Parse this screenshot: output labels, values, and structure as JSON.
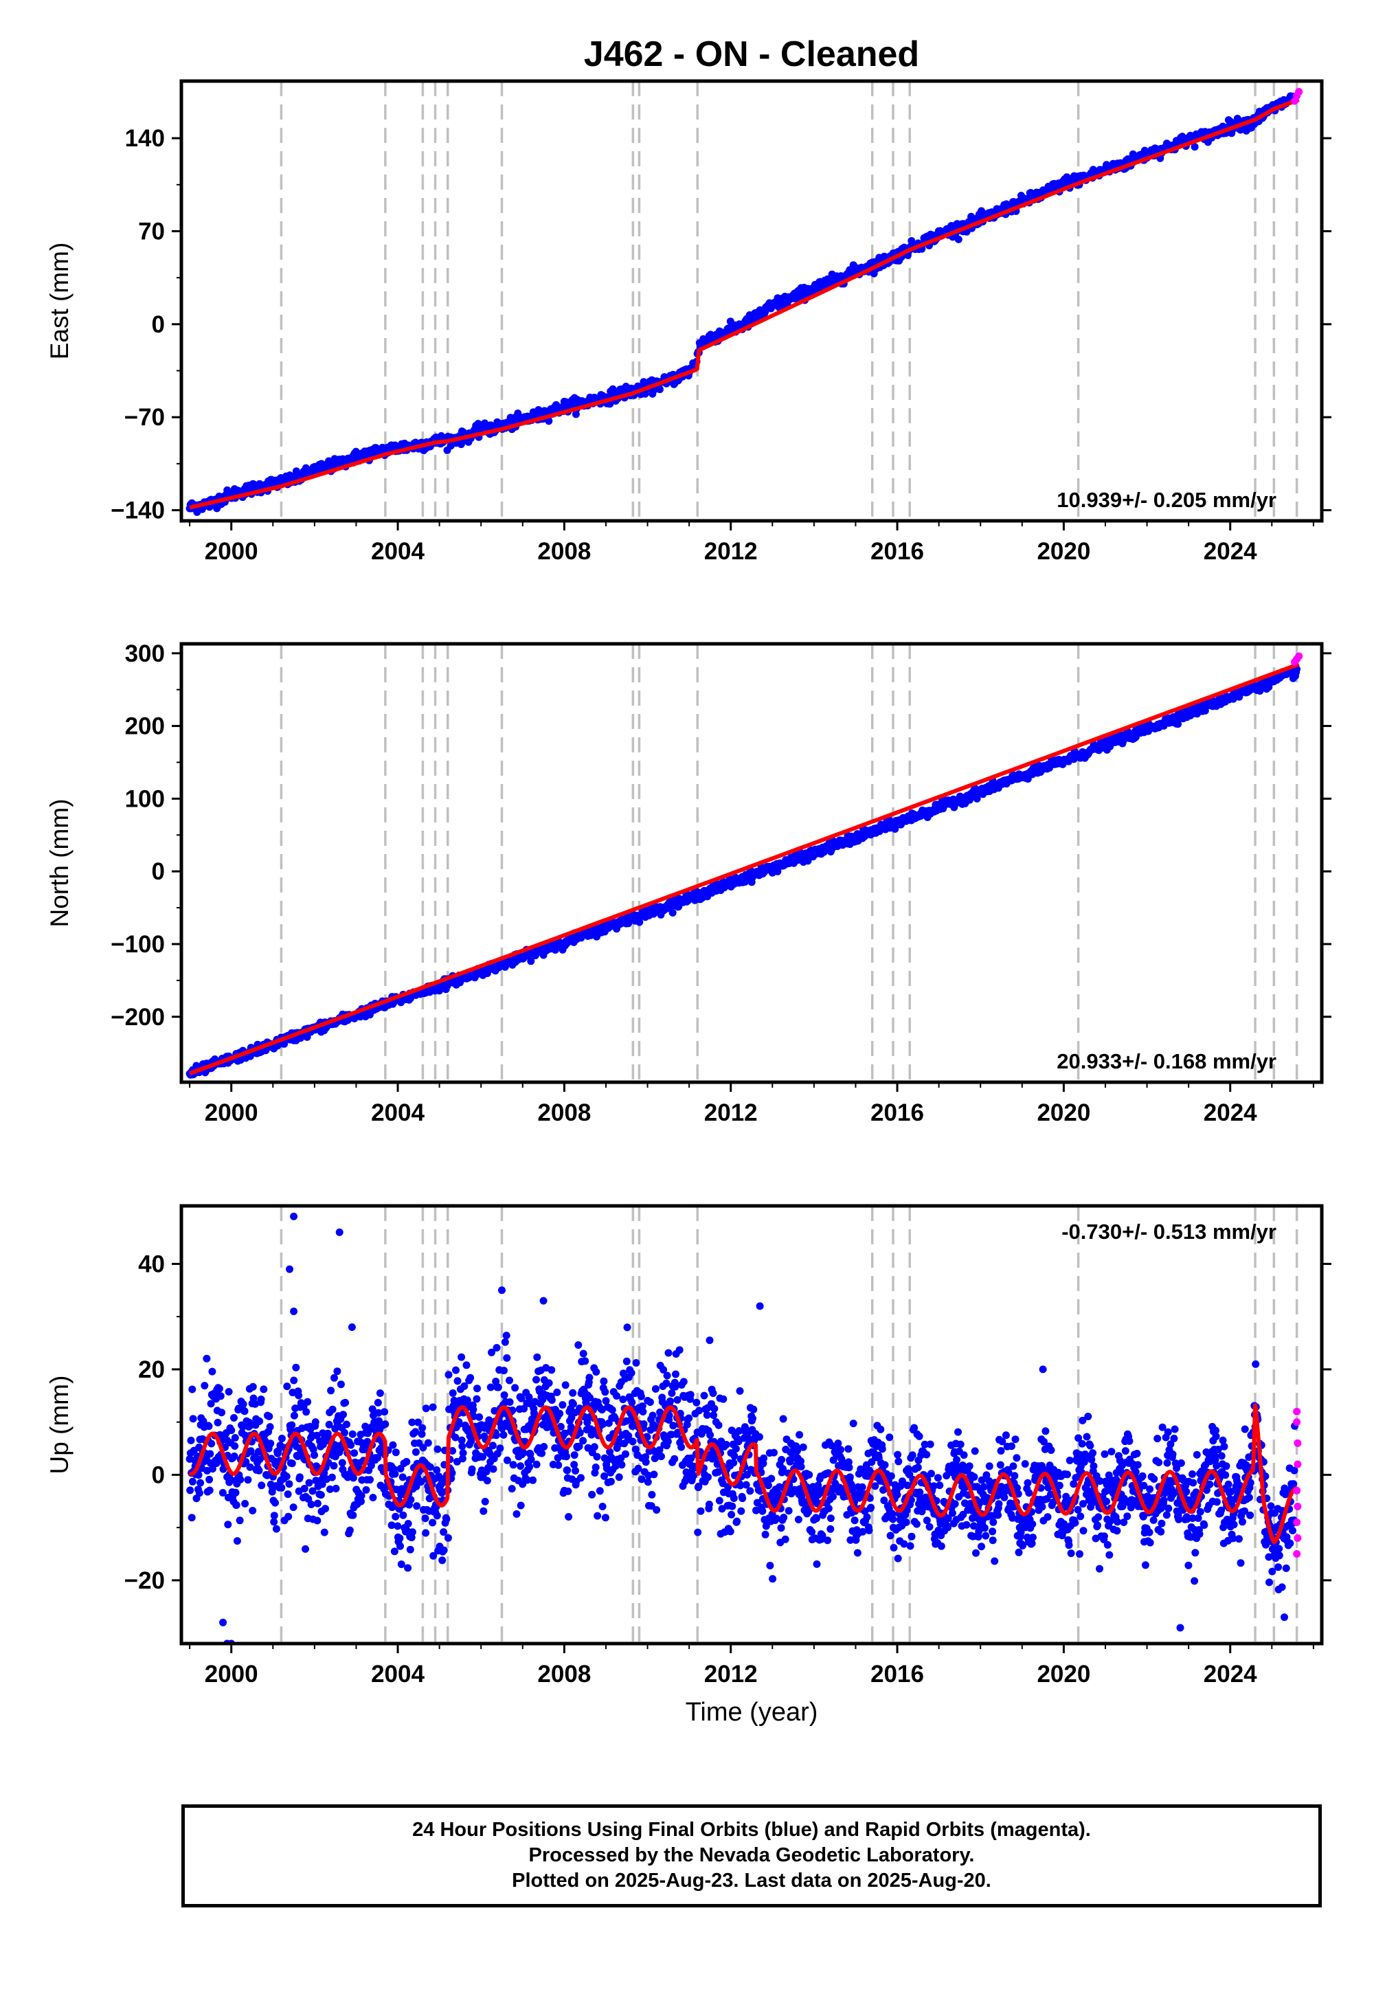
{
  "title": "J462  - ON - Cleaned",
  "colors": {
    "final": "#0000ff",
    "rapid": "#ff00ff",
    "model": "#ff0000",
    "steps": "#c0c0c0"
  },
  "step_years": [
    2001.2,
    2003.7,
    2004.6,
    2004.9,
    2005.2,
    2006.5,
    2009.65,
    2009.8,
    2011.2,
    2015.4,
    2015.9,
    2016.3,
    2020.35,
    2024.6,
    2025.05,
    2025.6
  ],
  "chart_data": [
    {
      "type": "scatter",
      "ylabel": "East (mm)",
      "xlabel": "",
      "xlim": [
        1998.8,
        2026.2
      ],
      "ylim": [
        -148,
        183
      ],
      "yticks": [
        -140,
        -70,
        0,
        70,
        140
      ],
      "xticks": [
        2000,
        2004,
        2008,
        2012,
        2016,
        2020,
        2024
      ],
      "rate_label": "10.939+/- 0.205 mm/yr",
      "rate_position": "bottom-right",
      "series": [
        {
          "role": "final",
          "x": [
            1999.0,
            1999.5,
            2000.0,
            2000.5,
            2001.0,
            2001.5,
            2002.0,
            2002.5,
            2003.0,
            2003.5,
            2004.0,
            2004.5,
            2005.0,
            2005.5,
            2006.0,
            2006.5,
            2007.0,
            2007.5,
            2008.0,
            2008.5,
            2009.0,
            2009.5,
            2010.0,
            2010.5,
            2011.0,
            2011.15,
            2011.25,
            2011.5,
            2012.0,
            2012.5,
            2013.0,
            2013.5,
            2014.0,
            2014.5,
            2015.0,
            2015.5,
            2016.0,
            2016.5,
            2017.0,
            2017.5,
            2018.0,
            2018.5,
            2019.0,
            2019.5,
            2020.0,
            2020.5,
            2021.0,
            2021.5,
            2022.0,
            2022.5,
            2023.0,
            2023.5,
            2024.0,
            2024.5,
            2025.0,
            2025.5
          ],
          "y": [
            -138,
            -135,
            -128,
            -124,
            -120,
            -117,
            -110,
            -106,
            -100,
            -96,
            -93,
            -91,
            -88,
            -86,
            -80,
            -77,
            -72,
            -68,
            -62,
            -59,
            -55,
            -51,
            -48,
            -43,
            -35,
            -30,
            -16,
            -10,
            -5,
            3,
            14,
            20,
            27,
            33,
            40,
            45,
            52,
            60,
            67,
            73,
            78,
            85,
            92,
            98,
            106,
            110,
            116,
            121,
            128,
            133,
            139,
            142,
            149,
            152,
            162,
            170
          ]
        },
        {
          "role": "rapid",
          "x": [
            2025.55,
            2025.6,
            2025.65
          ],
          "y": [
            168,
            172,
            175
          ]
        },
        {
          "role": "model",
          "x": [
            1999.0,
            2001.2,
            2003.7,
            2004.9,
            2005.2,
            2006.5,
            2009.65,
            2011.19,
            2011.21,
            2015.4,
            2016.3,
            2020.35,
            2024.6,
            2025.05,
            2025.65
          ],
          "y": [
            -138,
            -122,
            -98,
            -89,
            -88,
            -79,
            -52,
            -34,
            -20,
            42,
            56,
            106,
            154,
            162,
            169
          ]
        }
      ]
    },
    {
      "type": "scatter",
      "ylabel": "North (mm)",
      "xlabel": "",
      "xlim": [
        1998.8,
        2026.2
      ],
      "ylim": [
        -290,
        313
      ],
      "yticks": [
        -200,
        -100,
        0,
        100,
        200,
        300
      ],
      "xticks": [
        2000,
        2004,
        2008,
        2012,
        2016,
        2020,
        2024
      ],
      "rate_label": "20.933+/- 0.168 mm/yr",
      "rate_position": "bottom-right",
      "series": [
        {
          "role": "final",
          "x": [
            1999.0,
            2000.0,
            2001.0,
            2002.0,
            2003.0,
            2004.0,
            2005.0,
            2006.0,
            2007.0,
            2008.0,
            2009.0,
            2010.0,
            2011.0,
            2012.0,
            2013.0,
            2014.0,
            2015.0,
            2016.0,
            2017.0,
            2018.0,
            2019.0,
            2020.0,
            2021.0,
            2022.0,
            2023.0,
            2024.0,
            2025.0,
            2025.6
          ],
          "y": [
            -278,
            -258,
            -238,
            -217,
            -197,
            -177,
            -157,
            -137,
            -118,
            -97,
            -77,
            -57,
            -37,
            -16,
            5,
            25,
            46,
            67,
            88,
            110,
            131,
            152,
            174,
            196,
            218,
            240,
            262,
            275
          ]
        },
        {
          "role": "rapid",
          "x": [
            2025.55,
            2025.6,
            2025.65
          ],
          "y": [
            288,
            292,
            296
          ]
        },
        {
          "role": "model",
          "x": [
            1999.0,
            2025.65
          ],
          "y": [
            -278,
            285
          ]
        }
      ]
    },
    {
      "type": "scatter",
      "ylabel": "Up (mm)",
      "xlabel": "Time (year)",
      "xlim": [
        1998.8,
        2026.2
      ],
      "ylim": [
        -32,
        51
      ],
      "yticks": [
        -20,
        0,
        20,
        40
      ],
      "xticks": [
        2000,
        2004,
        2008,
        2012,
        2016,
        2020,
        2024
      ],
      "rate_label": "-0.730+/- 0.513 mm/yr",
      "rate_position": "top-right",
      "seasonal_amplitude_mm": 3.8,
      "series": [
        {
          "role": "model_baseline",
          "x": [
            1999.0,
            2003.7,
            2003.71,
            2005.2,
            2005.21,
            2011.2,
            2011.21,
            2012.6,
            2012.61,
            2016.3,
            2016.31,
            2024.55,
            2024.6,
            2024.8,
            2025.05,
            2025.65
          ],
          "y": [
            4,
            4,
            -2,
            -2,
            9,
            9,
            2,
            2,
            -3,
            -3,
            -4,
            -3,
            10,
            -5,
            -9,
            -6
          ]
        },
        {
          "role": "final_outliers",
          "x": [
            2001.5,
            2001.4,
            2002.6,
            2001.5,
            1999.8,
            1999.9,
            2000.0,
            2006.5,
            2007.5,
            2012.7,
            2019.5,
            2022.8,
            2025.3,
            2002.9
          ],
          "y": [
            49,
            39,
            46,
            31,
            -28,
            -32,
            -32,
            35,
            33,
            32,
            20,
            -29,
            -27,
            28
          ]
        },
        {
          "role": "rapid",
          "x": [
            2025.6,
            2025.6,
            2025.62,
            2025.62,
            2025.6,
            2025.62,
            2025.6,
            2025.62,
            2025.6
          ],
          "y": [
            12,
            10,
            6,
            2,
            -3,
            -6,
            -9,
            -12,
            -15
          ]
        }
      ]
    }
  ],
  "footer": {
    "line1": "24 Hour Positions Using Final Orbits (blue) and Rapid Orbits (magenta).",
    "line2": "Processed by the Nevada Geodetic Laboratory.",
    "line3": "Plotted on 2025-Aug-23. Last data on 2025-Aug-20."
  }
}
